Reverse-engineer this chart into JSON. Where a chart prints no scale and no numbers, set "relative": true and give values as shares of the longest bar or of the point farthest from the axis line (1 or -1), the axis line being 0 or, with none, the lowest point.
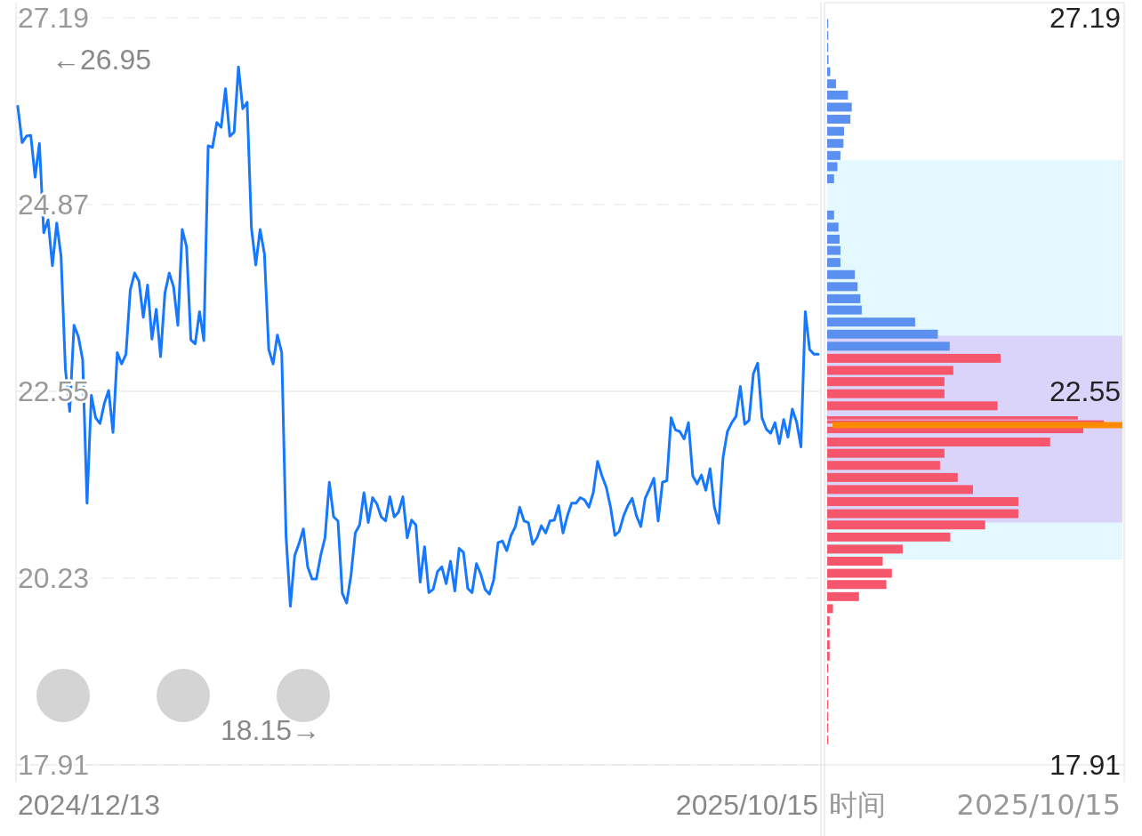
{
  "chart_data": [
    {
      "type": "line",
      "categories": [
        null,
        null,
        null,
        null,
        null,
        null,
        null,
        null,
        null,
        null,
        null,
        null,
        null,
        null,
        null,
        null,
        null,
        null,
        null,
        null,
        null,
        null,
        null,
        null,
        null,
        null,
        null,
        null,
        null,
        null,
        null,
        null,
        null,
        null,
        null,
        null,
        null,
        null,
        null,
        null,
        null,
        null,
        null,
        null,
        null,
        null,
        null,
        null,
        null,
        null,
        null,
        null,
        null,
        null,
        null,
        null,
        null,
        null,
        null,
        null,
        null,
        null,
        null,
        null,
        null,
        null,
        null,
        null,
        null,
        null,
        null,
        null,
        null,
        null,
        null,
        null,
        null,
        null,
        null,
        null,
        null,
        null,
        null,
        null,
        null,
        null,
        null,
        null,
        null,
        null,
        null,
        null,
        null,
        null,
        null,
        null,
        null,
        null,
        null,
        null,
        null,
        null,
        null,
        null,
        null,
        null,
        null,
        null,
        null,
        null,
        null,
        null,
        null,
        null,
        null,
        null,
        null,
        null,
        null,
        null,
        null,
        null,
        null,
        null,
        null,
        null,
        null,
        null,
        null,
        null,
        null,
        null,
        null,
        null,
        null,
        null,
        null,
        null,
        null,
        null,
        null,
        null,
        null,
        null,
        null,
        null,
        null,
        null,
        null,
        null,
        null,
        null,
        null,
        null,
        null,
        null,
        null,
        null,
        null,
        null,
        null,
        null,
        null,
        null,
        null,
        null,
        null,
        null,
        null,
        null,
        null,
        null,
        null,
        null,
        null,
        null,
        null,
        null,
        null,
        null,
        null,
        null,
        null,
        null,
        null,
        null
      ],
      "series": [
        {
          "color": "#1677ff",
          "values": [
            26.09,
            25.64,
            25.72,
            25.73,
            25.21,
            25.63,
            24.52,
            24.68,
            24.11,
            24.64,
            24.23,
            22.83,
            22.3,
            23.37,
            23.23,
            22.94,
            21.16,
            22.5,
            22.22,
            22.15,
            22.4,
            22.56,
            22.04,
            23.03,
            22.89,
            23.01,
            23.81,
            24.02,
            23.92,
            23.47,
            23.87,
            23.2,
            23.57,
            22.98,
            23.77,
            24.02,
            23.85,
            23.37,
            24.56,
            24.35,
            23.19,
            23.14,
            23.54,
            23.18,
            25.6,
            25.58,
            25.89,
            25.83,
            26.31,
            25.72,
            25.77,
            26.58,
            26.06,
            26.14,
            24.58,
            24.12,
            24.56,
            24.26,
            23.07,
            22.89,
            23.25,
            23.03,
            20.75,
            19.88,
            20.51,
            20.66,
            20.84,
            20.37,
            20.22,
            20.22,
            20.51,
            20.73,
            21.42,
            20.99,
            20.94,
            20.04,
            19.92,
            20.26,
            20.79,
            20.89,
            21.29,
            20.92,
            21.23,
            21.15,
            20.99,
            20.94,
            21.24,
            20.99,
            21.05,
            21.24,
            20.73,
            20.95,
            20.89,
            20.18,
            20.62,
            20.05,
            20.09,
            20.31,
            20.37,
            20.16,
            20.44,
            20.07,
            20.6,
            20.55,
            20.1,
            20.05,
            20.41,
            20.28,
            20.09,
            20.03,
            20.21,
            20.67,
            20.69,
            20.57,
            20.76,
            20.87,
            21.11,
            20.94,
            20.92,
            20.65,
            20.73,
            20.88,
            20.79,
            20.94,
            20.95,
            21.13,
            20.79,
            21.0,
            21.16,
            21.16,
            21.23,
            21.2,
            21.11,
            21.29,
            21.68,
            21.5,
            21.36,
            21.11,
            20.76,
            20.81,
            21.0,
            21.13,
            21.22,
            21.0,
            20.87,
            21.22,
            21.34,
            21.47,
            20.94,
            21.42,
            21.44,
            22.22,
            22.07,
            22.05,
            21.96,
            22.16,
            21.5,
            21.4,
            21.51,
            21.32,
            21.59,
            21.11,
            20.91,
            21.73,
            22.05,
            22.16,
            22.24,
            22.61,
            22.14,
            22.19,
            22.77,
            22.9,
            22.22,
            22.08,
            22.03,
            22.16,
            21.9,
            22.2,
            21.98,
            22.33,
            22.17,
            21.86,
            23.54,
            23.07,
            23.01,
            23.01
          ]
        }
      ],
      "ylim": [
        17.91,
        27.19
      ],
      "yticks": [
        17.91,
        20.23,
        22.55,
        24.87,
        27.19
      ],
      "grid": "y",
      "marker": "none",
      "line_style": "solid",
      "ref_lines": [
        {
          "axis": "y",
          "value": 22.55,
          "color": "#e3e3e3"
        }
      ],
      "annotations": [
        "←26.95",
        "18.15→",
        "2024/12/13",
        "2025/10/15"
      ]
    },
    {
      "type": "bar",
      "orientation": "horizontal",
      "relative": true,
      "ylim": [
        17.91,
        27.19
      ],
      "yticks": [
        17.91,
        22.55,
        27.19
      ],
      "x": [
        27.12,
        26.97,
        26.82,
        26.67,
        26.52,
        26.37,
        26.23,
        26.08,
        25.93,
        25.78,
        25.63,
        25.48,
        25.34,
        25.19,
        24.74,
        24.59,
        24.44,
        24.3,
        24.15,
        24.0,
        23.85,
        23.7,
        23.56,
        23.41,
        23.26,
        23.11,
        22.96,
        22.81,
        22.67,
        22.52,
        22.37,
        22.22,
        22.17,
        22.07,
        21.92,
        21.78,
        21.63,
        21.48,
        21.33,
        21.18,
        21.03,
        20.89,
        20.74,
        20.59,
        20.44,
        20.29,
        20.15,
        20.0,
        19.85,
        19.7,
        19.55,
        19.4,
        19.26,
        19.11,
        18.96,
        18.81,
        18.66,
        18.51,
        18.37,
        18.22
      ],
      "values": [
        0.004,
        0.004,
        0.004,
        0.005,
        0.011,
        0.032,
        0.075,
        0.089,
        0.084,
        0.061,
        0.059,
        0.048,
        0.037,
        0.025,
        0.025,
        0.041,
        0.045,
        0.048,
        0.048,
        0.1,
        0.11,
        0.12,
        0.125,
        0.318,
        0.4,
        0.443,
        0.627,
        0.456,
        0.424,
        0.424,
        0.616,
        0.906,
        1,
        0.926,
        0.806,
        0.424,
        0.408,
        0.472,
        0.527,
        0.691,
        0.691,
        0.571,
        0.445,
        0.273,
        0.201,
        0.234,
        0.214,
        0.115,
        0.021,
        0.009,
        0.009,
        0.009,
        0.009,
        0.004,
        0.004,
        0.004,
        0.004,
        0.004,
        0.004,
        0.004
      ],
      "colors": [
        "#5b8ff0",
        "#5b8ff0",
        "#5b8ff0",
        "#5b8ff0",
        "#5b8ff0",
        "#5b8ff0",
        "#5b8ff0",
        "#5b8ff0",
        "#5b8ff0",
        "#5b8ff0",
        "#5b8ff0",
        "#5b8ff0",
        "#5b8ff0",
        "#5b8ff0",
        "#5b8ff0",
        "#5b8ff0",
        "#5b8ff0",
        "#5b8ff0",
        "#5b8ff0",
        "#5b8ff0",
        "#5b8ff0",
        "#5b8ff0",
        "#5b8ff0",
        "#5b8ff0",
        "#5b8ff0",
        "#5b8ff0",
        "#f5566b",
        "#f5566b",
        "#f5566b",
        "#f5566b",
        "#f5566b",
        "#f5566b",
        "#f5566b",
        "#f5566b",
        "#f5566b",
        "#f5566b",
        "#f5566b",
        "#f5566b",
        "#f5566b",
        "#f5566b",
        "#f5566b",
        "#f5566b",
        "#f5566b",
        "#f5566b",
        "#f5566b",
        "#f5566b",
        "#f5566b",
        "#f5566b",
        "#f5566b",
        "#f5566b",
        "#f5566b",
        "#f5566b",
        "#f5566b",
        "#f5566b",
        "#f5566b",
        "#f5566b",
        "#f5566b",
        "#f5566b",
        "#f5566b",
        "#f5566b"
      ],
      "ref_lines": [
        {
          "axis": "y",
          "value": 22.13,
          "color": "#ff8c00"
        }
      ],
      "bands": [
        {
          "axis": "y",
          "from": 20.46,
          "to": 25.42,
          "color": "#66ddff"
        },
        {
          "axis": "y",
          "from": 20.92,
          "to": 23.24,
          "color": "#b82ee6"
        }
      ],
      "annotations": [
        "时间",
        "2025/10/15"
      ]
    }
  ]
}
